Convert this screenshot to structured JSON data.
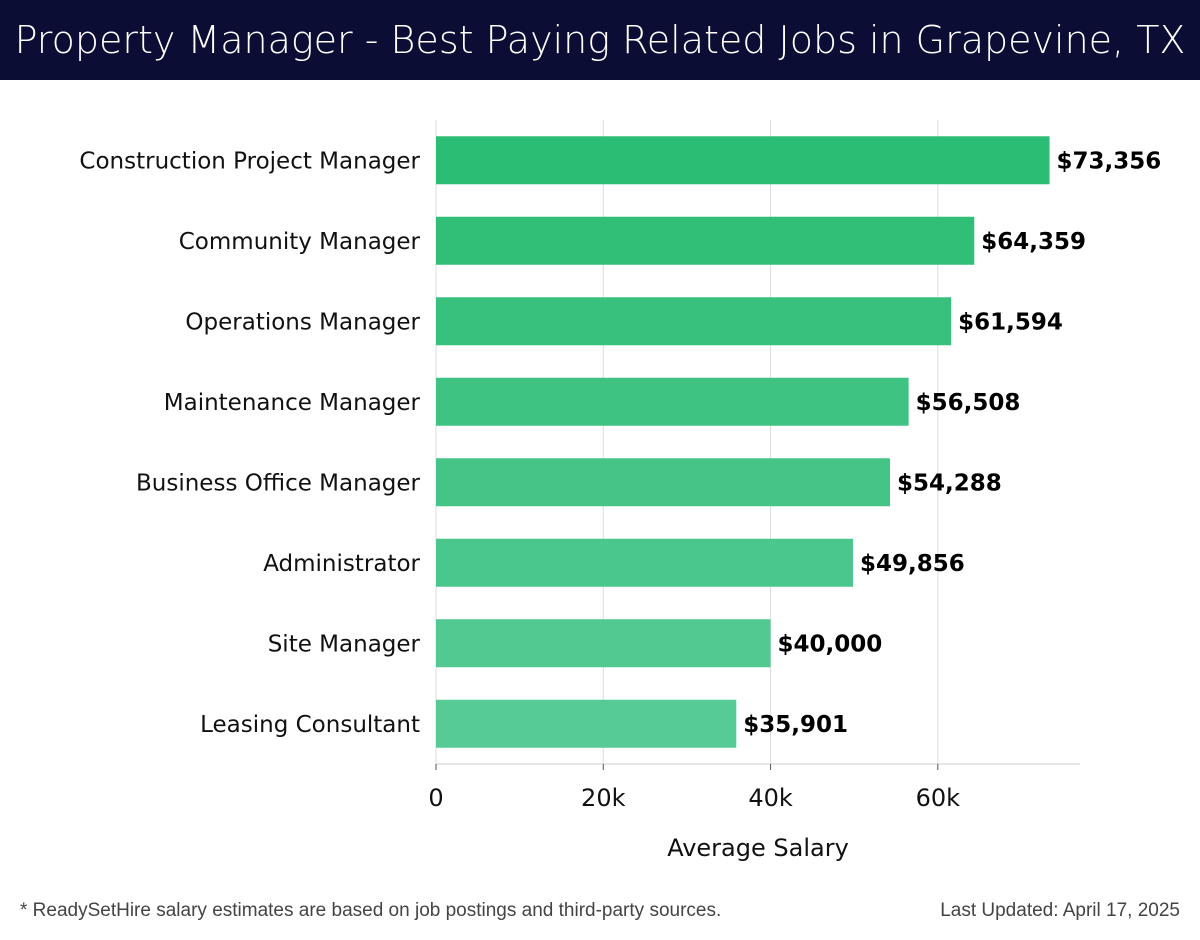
{
  "header": {
    "title": "Property Manager - Best Paying Related Jobs in Grapevine, TX"
  },
  "footer": {
    "note": "* ReadySetHire salary estimates are based on job postings and third-party sources.",
    "updated": "Last Updated: April 17, 2025"
  },
  "colors": {
    "header_bg": "#0b0d35",
    "bar_dark": "#2bbd73",
    "bar_light": "#57cb96",
    "grid": "#dddddd",
    "label_text": "#111111"
  },
  "chart_data": {
    "type": "bar",
    "orientation": "horizontal",
    "xlabel": "Average Salary",
    "ylabel": "",
    "xlim": [
      0,
      77000
    ],
    "xticks": [
      0,
      20000,
      40000,
      60000
    ],
    "xtick_labels": [
      "0",
      "20k",
      "40k",
      "60k"
    ],
    "grid": "vertical",
    "categories": [
      "Construction Project Manager",
      "Community Manager",
      "Operations Manager",
      "Maintenance Manager",
      "Business Office Manager",
      "Administrator",
      "Site Manager",
      "Leasing Consultant"
    ],
    "values": [
      73356,
      64359,
      61594,
      56508,
      54288,
      49856,
      40000,
      35901
    ],
    "value_labels": [
      "$73,356",
      "$64,359",
      "$61,594",
      "$56,508",
      "$54,288",
      "$49,856",
      "$40,000",
      "$35,901"
    ]
  }
}
